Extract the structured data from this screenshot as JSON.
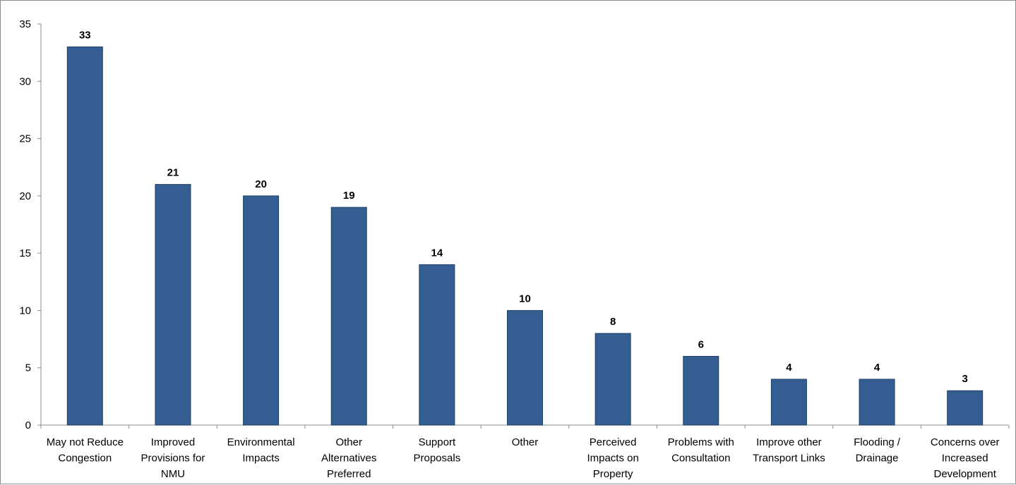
{
  "chart_data": {
    "type": "bar",
    "categories": [
      [
        "May not Reduce",
        "Congestion"
      ],
      [
        "Improved",
        "Provisions for",
        "NMU"
      ],
      [
        "Environmental",
        "Impacts"
      ],
      [
        "Other",
        "Alternatives",
        "Preferred"
      ],
      [
        "Support",
        "Proposals"
      ],
      [
        "Other"
      ],
      [
        "Perceived",
        "Impacts on",
        "Property"
      ],
      [
        "Problems with",
        "Consultation"
      ],
      [
        "Improve other",
        "Transport Links"
      ],
      [
        "Flooding /",
        "Drainage"
      ],
      [
        "Concerns over",
        "Increased",
        "Development"
      ]
    ],
    "values": [
      33,
      21,
      20,
      19,
      14,
      10,
      8,
      6,
      4,
      4,
      3
    ],
    "data_labels": [
      "33",
      "21",
      "20",
      "19",
      "14",
      "10",
      "8",
      "6",
      "4",
      "4",
      "3"
    ],
    "ylim": [
      0,
      35
    ],
    "yticks": [
      0,
      5,
      10,
      15,
      20,
      25,
      30,
      35
    ],
    "ytick_labels": [
      "0",
      "5",
      "10",
      "15",
      "20",
      "25",
      "30",
      "35"
    ],
    "grid": false,
    "legend": "none",
    "bar_color": "#345d91",
    "bar_edge_color": "#1f3f66",
    "axis_color": "#8c8c8c"
  }
}
